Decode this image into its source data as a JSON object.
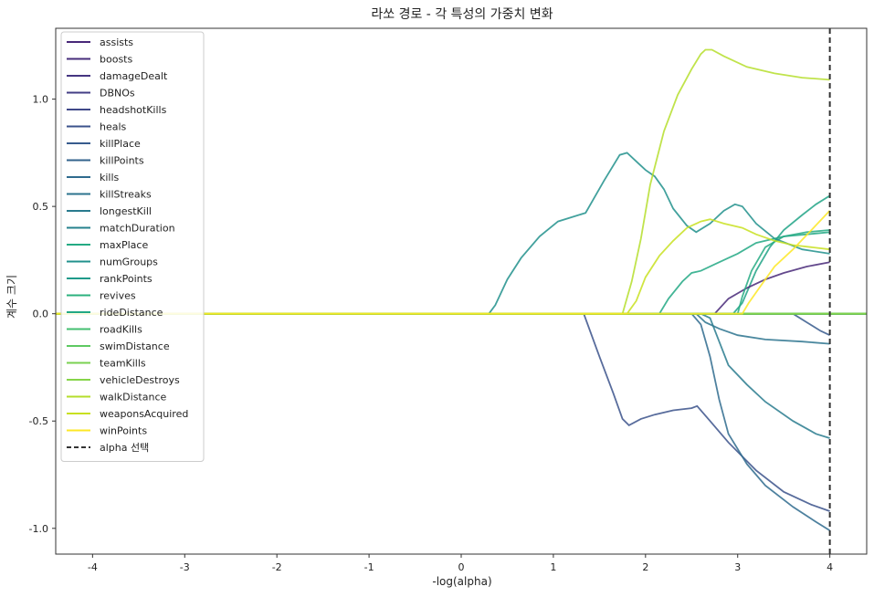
{
  "chart_data": {
    "type": "line",
    "title": "라쏘 경로 - 각 특성의 가중치 변화",
    "xlabel": "-log(alpha)",
    "ylabel": "계수 크기",
    "xlim": [
      -4.4,
      4.4
    ],
    "ylim": [
      -1.12,
      1.33
    ],
    "xticks": [
      -4,
      -3,
      -2,
      -1,
      0,
      1,
      2,
      3,
      4
    ],
    "xtick_labels": [
      "-4",
      "-3",
      "-2",
      "-1",
      "0",
      "1",
      "2",
      "3",
      "4"
    ],
    "yticks": [
      -1.0,
      -0.5,
      0.0,
      0.5,
      1.0
    ],
    "ytick_labels": [
      "-1.0",
      "-0.5",
      "0.0",
      "0.5",
      "1.0"
    ],
    "grid": false,
    "legend": "upper-left",
    "vline": {
      "x": 4,
      "label": "alpha 선택",
      "color": "#333333",
      "style": "dashed"
    },
    "series": [
      {
        "name": "assists",
        "color": "#482878",
        "points": [
          [
            -4.4,
            0
          ],
          [
            2.75,
            0
          ],
          [
            2.9,
            0.07
          ],
          [
            3.1,
            0.12
          ],
          [
            3.3,
            0.16
          ],
          [
            3.5,
            0.19
          ],
          [
            3.75,
            0.22
          ],
          [
            4.0,
            0.24
          ]
        ]
      },
      {
        "name": "boosts",
        "color": "#472d7b",
        "points": [
          [
            -4.4,
            0
          ],
          [
            4.4,
            0
          ]
        ]
      },
      {
        "name": "damageDealt",
        "color": "#453581",
        "points": [
          [
            -4.4,
            0
          ],
          [
            4.4,
            0
          ]
        ]
      },
      {
        "name": "DBNOs",
        "color": "#433e85",
        "points": [
          [
            -4.4,
            0
          ],
          [
            4.4,
            0
          ]
        ]
      },
      {
        "name": "headshotKills",
        "color": "#3f4889",
        "points": [
          [
            -4.4,
            0
          ],
          [
            4.4,
            0
          ]
        ]
      },
      {
        "name": "heals",
        "color": "#3b528b",
        "points": [
          [
            -4.4,
            0
          ],
          [
            1.33,
            0
          ],
          [
            1.5,
            -0.2
          ],
          [
            1.65,
            -0.37
          ],
          [
            1.75,
            -0.49
          ],
          [
            1.82,
            -0.52
          ],
          [
            1.95,
            -0.49
          ],
          [
            2.1,
            -0.47
          ],
          [
            2.3,
            -0.45
          ],
          [
            2.5,
            -0.44
          ],
          [
            2.56,
            -0.43
          ],
          [
            2.7,
            -0.5
          ],
          [
            2.9,
            -0.6
          ],
          [
            3.2,
            -0.73
          ],
          [
            3.5,
            -0.83
          ],
          [
            3.8,
            -0.89
          ],
          [
            4.0,
            -0.92
          ]
        ]
      },
      {
        "name": "killPlace",
        "color": "#375b8d",
        "points": [
          [
            -4.4,
            0
          ],
          [
            3.6,
            0
          ],
          [
            3.75,
            -0.04
          ],
          [
            3.9,
            -0.08
          ],
          [
            4.0,
            -0.1
          ]
        ]
      },
      {
        "name": "killPoints",
        "color": "#33638d",
        "points": [
          [
            -4.4,
            0
          ],
          [
            4.4,
            0
          ]
        ]
      },
      {
        "name": "kills",
        "color": "#2f6b8e",
        "points": [
          [
            -4.4,
            0
          ],
          [
            2.5,
            0
          ],
          [
            2.6,
            -0.05
          ],
          [
            2.7,
            -0.2
          ],
          [
            2.8,
            -0.4
          ],
          [
            2.9,
            -0.56
          ],
          [
            3.1,
            -0.7
          ],
          [
            3.3,
            -0.8
          ],
          [
            3.6,
            -0.9
          ],
          [
            3.85,
            -0.97
          ],
          [
            4.0,
            -1.01
          ]
        ]
      },
      {
        "name": "killStreaks",
        "color": "#2c738e",
        "points": [
          [
            -4.4,
            0
          ],
          [
            2.55,
            0
          ],
          [
            2.65,
            -0.04
          ],
          [
            2.8,
            -0.07
          ],
          [
            3.0,
            -0.1
          ],
          [
            3.3,
            -0.12
          ],
          [
            3.7,
            -0.13
          ],
          [
            4.0,
            -0.14
          ]
        ]
      },
      {
        "name": "longestKill",
        "color": "#297b8e",
        "points": [
          [
            -4.4,
            0
          ],
          [
            2.6,
            0
          ],
          [
            2.7,
            -0.02
          ],
          [
            2.8,
            -0.13
          ],
          [
            2.9,
            -0.24
          ],
          [
            3.1,
            -0.33
          ],
          [
            3.3,
            -0.41
          ],
          [
            3.6,
            -0.5
          ],
          [
            3.85,
            -0.56
          ],
          [
            4.0,
            -0.58
          ]
        ]
      },
      {
        "name": "matchDuration",
        "color": "#26828e",
        "points": [
          [
            -4.4,
            0
          ],
          [
            4.4,
            0
          ]
        ]
      },
      {
        "name": "maxPlace",
        "color": "#24aa83",
        "points": [
          [
            -4.4,
            0
          ],
          [
            3.0,
            0
          ],
          [
            3.05,
            0.08
          ],
          [
            3.15,
            0.2
          ],
          [
            3.3,
            0.31
          ],
          [
            3.5,
            0.36
          ],
          [
            3.75,
            0.38
          ],
          [
            4.0,
            0.39
          ]
        ]
      },
      {
        "name": "numGroups",
        "color": "#21918c",
        "points": [
          [
            -4.4,
            0
          ],
          [
            0.3,
            0
          ],
          [
            0.37,
            0.04
          ],
          [
            0.5,
            0.16
          ],
          [
            0.65,
            0.26
          ],
          [
            0.85,
            0.36
          ],
          [
            1.05,
            0.43
          ],
          [
            1.35,
            0.47
          ],
          [
            1.55,
            0.62
          ],
          [
            1.72,
            0.74
          ],
          [
            1.8,
            0.75
          ],
          [
            1.9,
            0.71
          ],
          [
            2.0,
            0.67
          ],
          [
            2.1,
            0.64
          ],
          [
            2.2,
            0.58
          ],
          [
            2.3,
            0.49
          ],
          [
            2.45,
            0.41
          ],
          [
            2.55,
            0.38
          ],
          [
            2.7,
            0.42
          ],
          [
            2.85,
            0.48
          ],
          [
            2.97,
            0.51
          ],
          [
            3.05,
            0.5
          ],
          [
            3.2,
            0.42
          ],
          [
            3.4,
            0.35
          ],
          [
            3.7,
            0.3
          ],
          [
            4.0,
            0.28
          ]
        ]
      },
      {
        "name": "rankPoints",
        "color": "#1f9a8a",
        "points": [
          [
            -4.4,
            0
          ],
          [
            4.4,
            0
          ]
        ]
      },
      {
        "name": "revives",
        "color": "#2cb17e",
        "points": [
          [
            -4.4,
            0
          ],
          [
            4.4,
            0
          ]
        ]
      },
      {
        "name": "rideDistance",
        "color": "#22a884",
        "points": [
          [
            -4.4,
            0
          ],
          [
            2.15,
            0
          ],
          [
            2.25,
            0.07
          ],
          [
            2.4,
            0.15
          ],
          [
            2.5,
            0.19
          ],
          [
            2.6,
            0.2
          ],
          [
            2.75,
            0.23
          ],
          [
            2.9,
            0.26
          ],
          [
            3.0,
            0.28
          ],
          [
            3.2,
            0.33
          ],
          [
            3.5,
            0.36
          ],
          [
            3.75,
            0.37
          ],
          [
            4.0,
            0.38
          ]
        ]
      },
      {
        "name": "roadKills",
        "color": "#44bf70",
        "points": [
          [
            -4.4,
            0
          ],
          [
            4.4,
            0
          ]
        ]
      },
      {
        "name": "swimDistance",
        "color": "#5ec962",
        "points": [
          [
            -4.4,
            0
          ],
          [
            4.4,
            0
          ]
        ]
      },
      {
        "name": "teamKills",
        "color": "#7ad151",
        "points": [
          [
            -4.4,
            0
          ],
          [
            4.4,
            0
          ]
        ]
      },
      {
        "name": "vehicleDestroys",
        "color": "#86d549",
        "points": [
          [
            -4.4,
            0
          ],
          [
            4.4,
            0
          ]
        ]
      },
      {
        "name": "walkDistance",
        "color": "#b5de2b",
        "points": [
          [
            -4.4,
            0
          ],
          [
            1.75,
            0
          ],
          [
            1.85,
            0.15
          ],
          [
            1.95,
            0.35
          ],
          [
            2.05,
            0.6
          ],
          [
            2.2,
            0.85
          ],
          [
            2.35,
            1.02
          ],
          [
            2.5,
            1.14
          ],
          [
            2.6,
            1.21
          ],
          [
            2.65,
            1.23
          ],
          [
            2.72,
            1.23
          ],
          [
            2.85,
            1.2
          ],
          [
            3.1,
            1.15
          ],
          [
            3.4,
            1.12
          ],
          [
            3.7,
            1.1
          ],
          [
            4.0,
            1.09
          ]
        ]
      },
      {
        "name": "weaponsAcquired",
        "color": "#c8e020",
        "points": [
          [
            -4.4,
            0
          ],
          [
            1.8,
            0
          ],
          [
            1.9,
            0.06
          ],
          [
            2.0,
            0.17
          ],
          [
            2.15,
            0.27
          ],
          [
            2.3,
            0.34
          ],
          [
            2.45,
            0.4
          ],
          [
            2.6,
            0.43
          ],
          [
            2.7,
            0.44
          ],
          [
            2.85,
            0.42
          ],
          [
            3.05,
            0.4
          ],
          [
            3.2,
            0.37
          ],
          [
            3.4,
            0.34
          ],
          [
            3.6,
            0.32
          ],
          [
            3.8,
            0.31
          ],
          [
            4.0,
            0.3
          ]
        ]
      },
      {
        "name": "winPoints",
        "color": "#fde725",
        "points": [
          [
            -4.4,
            0
          ],
          [
            3.05,
            0
          ],
          [
            3.12,
            0.05
          ],
          [
            3.25,
            0.13
          ],
          [
            3.4,
            0.22
          ],
          [
            3.6,
            0.3
          ],
          [
            3.8,
            0.39
          ],
          [
            4.0,
            0.48
          ]
        ]
      }
    ],
    "extra_series": [
      {
        "color": "#20a386",
        "points": [
          [
            -4.4,
            0
          ],
          [
            2.95,
            0
          ],
          [
            3.05,
            0.05
          ],
          [
            3.2,
            0.2
          ],
          [
            3.35,
            0.31
          ],
          [
            3.5,
            0.39
          ],
          [
            3.7,
            0.46
          ],
          [
            3.85,
            0.51
          ],
          [
            4.0,
            0.55
          ]
        ]
      }
    ]
  }
}
